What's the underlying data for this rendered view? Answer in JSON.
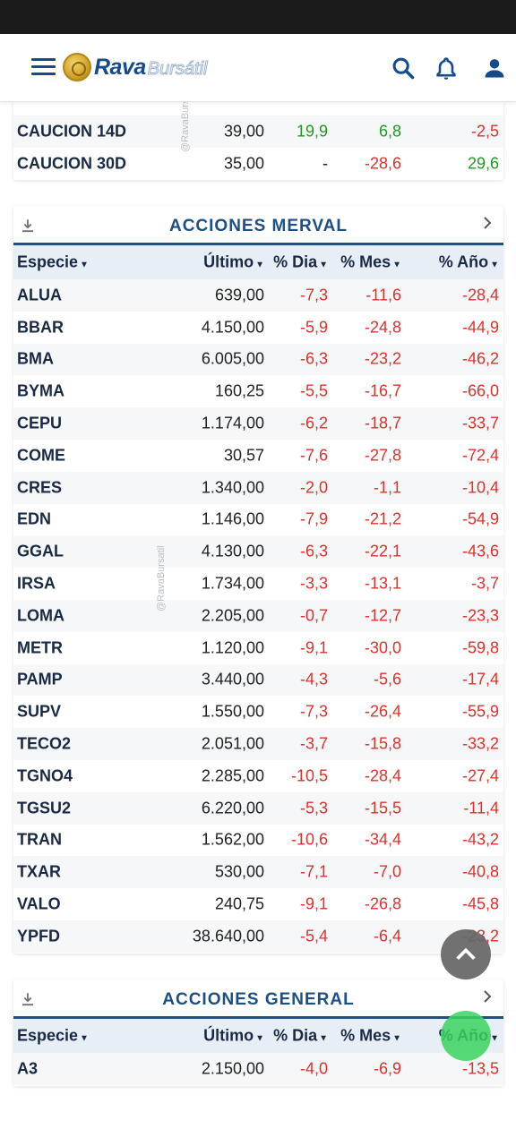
{
  "header": {
    "logo_rava": "Rava",
    "logo_bursatil": "Bursátil",
    "icons": [
      "menu-icon",
      "search-icon",
      "bell-icon",
      "user-icon"
    ],
    "accent_color": "#164a8a"
  },
  "watermark": "@RavaBursatil",
  "caucion": {
    "rows": [
      {
        "name": "CAUCION 14D",
        "last": "39,00",
        "day": "19,9",
        "month": "6,8",
        "year": "-2,5"
      },
      {
        "name": "CAUCION 30D",
        "last": "35,00",
        "day": "-",
        "month": "-28,6",
        "year": "29,6"
      }
    ]
  },
  "merval": {
    "title": "ACCIONES MERVAL",
    "columns": {
      "especie": "Especie",
      "ultimo": "Último",
      "dia": "% Dia",
      "mes": "% Mes",
      "ano": "% Año"
    },
    "rows": [
      {
        "name": "ALUA",
        "last": "639,00",
        "day": "-7,3",
        "month": "-11,6",
        "year": "-28,4"
      },
      {
        "name": "BBAR",
        "last": "4.150,00",
        "day": "-5,9",
        "month": "-24,8",
        "year": "-44,9"
      },
      {
        "name": "BMA",
        "last": "6.005,00",
        "day": "-6,3",
        "month": "-23,2",
        "year": "-46,2"
      },
      {
        "name": "BYMA",
        "last": "160,25",
        "day": "-5,5",
        "month": "-16,7",
        "year": "-66,0"
      },
      {
        "name": "CEPU",
        "last": "1.174,00",
        "day": "-6,2",
        "month": "-18,7",
        "year": "-33,7"
      },
      {
        "name": "COME",
        "last": "30,57",
        "day": "-7,6",
        "month": "-27,8",
        "year": "-72,4"
      },
      {
        "name": "CRES",
        "last": "1.340,00",
        "day": "-2,0",
        "month": "-1,1",
        "year": "-10,4"
      },
      {
        "name": "EDN",
        "last": "1.146,00",
        "day": "-7,9",
        "month": "-21,2",
        "year": "-54,9"
      },
      {
        "name": "GGAL",
        "last": "4.130,00",
        "day": "-6,3",
        "month": "-22,1",
        "year": "-43,6"
      },
      {
        "name": "IRSA",
        "last": "1.734,00",
        "day": "-3,3",
        "month": "-13,1",
        "year": "-3,7"
      },
      {
        "name": "LOMA",
        "last": "2.205,00",
        "day": "-0,7",
        "month": "-12,7",
        "year": "-23,3"
      },
      {
        "name": "METR",
        "last": "1.120,00",
        "day": "-9,1",
        "month": "-30,0",
        "year": "-59,8"
      },
      {
        "name": "PAMP",
        "last": "3.440,00",
        "day": "-4,3",
        "month": "-5,6",
        "year": "-17,4"
      },
      {
        "name": "SUPV",
        "last": "1.550,00",
        "day": "-7,3",
        "month": "-26,4",
        "year": "-55,9"
      },
      {
        "name": "TECO2",
        "last": "2.051,00",
        "day": "-3,7",
        "month": "-15,8",
        "year": "-33,2"
      },
      {
        "name": "TGNO4",
        "last": "2.285,00",
        "day": "-10,5",
        "month": "-28,4",
        "year": "-27,4"
      },
      {
        "name": "TGSU2",
        "last": "6.220,00",
        "day": "-5,3",
        "month": "-15,5",
        "year": "-11,4"
      },
      {
        "name": "TRAN",
        "last": "1.562,00",
        "day": "-10,6",
        "month": "-34,4",
        "year": "-43,2"
      },
      {
        "name": "TXAR",
        "last": "530,00",
        "day": "-7,1",
        "month": "-7,0",
        "year": "-40,8"
      },
      {
        "name": "VALO",
        "last": "240,75",
        "day": "-9,1",
        "month": "-26,8",
        "year": "-45,8"
      },
      {
        "name": "YPFD",
        "last": "38.640,00",
        "day": "-5,4",
        "month": "-6,4",
        "year": "-23,2"
      }
    ]
  },
  "general": {
    "title": "ACCIONES GENERAL",
    "columns": {
      "especie": "Especie",
      "ultimo": "Último",
      "dia": "% Dia",
      "mes": "% Mes",
      "ano": "% Año"
    },
    "rows": [
      {
        "name": "A3",
        "last": "2.150,00",
        "day": "-4,0",
        "month": "-6,9",
        "year": "-13,5"
      }
    ]
  },
  "colors": {
    "negative": "#e0302a",
    "positive": "#1e9a1e",
    "section_title": "#1d4f86",
    "fab_green": "#3ad45f"
  }
}
